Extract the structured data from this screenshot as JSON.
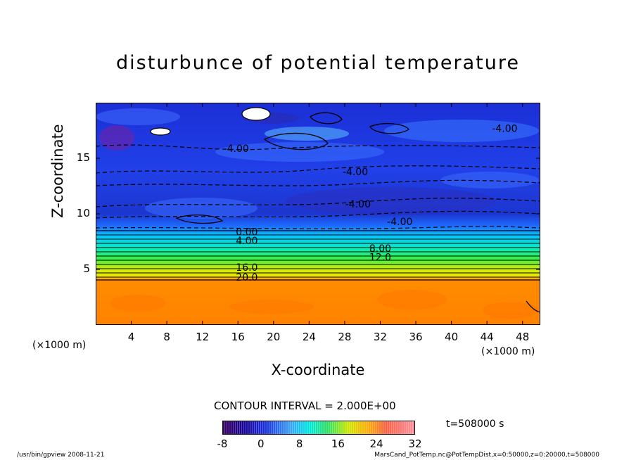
{
  "chart_data": {
    "type": "heatmap",
    "title": "disturbunce of potential temperature",
    "xlabel": "X-coordinate",
    "ylabel": "Z-coordinate",
    "x_unit": "(×1000 m)",
    "y_unit": "(×1000 m)",
    "x_ticks": [
      4,
      8,
      12,
      16,
      20,
      24,
      28,
      32,
      36,
      40,
      44,
      48
    ],
    "y_ticks": [
      5,
      10,
      15
    ],
    "xlim": [
      0,
      50
    ],
    "ylim": [
      0,
      20
    ],
    "contour_interval": "CONTOUR INTERVAL = 2.000E+00",
    "contour_labels": [
      {
        "text": "-4.00",
        "x": 46,
        "z": 17.7
      },
      {
        "text": "-4.00",
        "x": 15.8,
        "z": 15.9
      },
      {
        "text": "-4.00",
        "x": 29.2,
        "z": 13.8
      },
      {
        "text": "-4.00",
        "x": 29.5,
        "z": 10.9
      },
      {
        "text": "-4.00",
        "x": 34.2,
        "z": 9.3
      },
      {
        "text": "0.00",
        "x": 17,
        "z": 8.4
      },
      {
        "text": "4.00",
        "x": 17,
        "z": 7.6
      },
      {
        "text": "8.00",
        "x": 32,
        "z": 6.9
      },
      {
        "text": "12.0",
        "x": 32,
        "z": 6.1
      },
      {
        "text": "16.0",
        "x": 17,
        "z": 5.2
      },
      {
        "text": "20.0",
        "x": 17,
        "z": 4.3
      }
    ],
    "colorbar": {
      "min": -8,
      "max": 32,
      "ticks": [
        -8,
        0,
        8,
        16,
        24,
        32
      ]
    },
    "time": "t=508000 s"
  },
  "footer": {
    "left": "/usr/bin/gpview   2008-11-21",
    "right": "MarsCand_PotTemp.nc@PotTempDist,x=0:50000,z=0:20000,t=508000"
  },
  "colors": {
    "upper_region": "#1a3fe0",
    "lower_region": "#ff8c00"
  }
}
